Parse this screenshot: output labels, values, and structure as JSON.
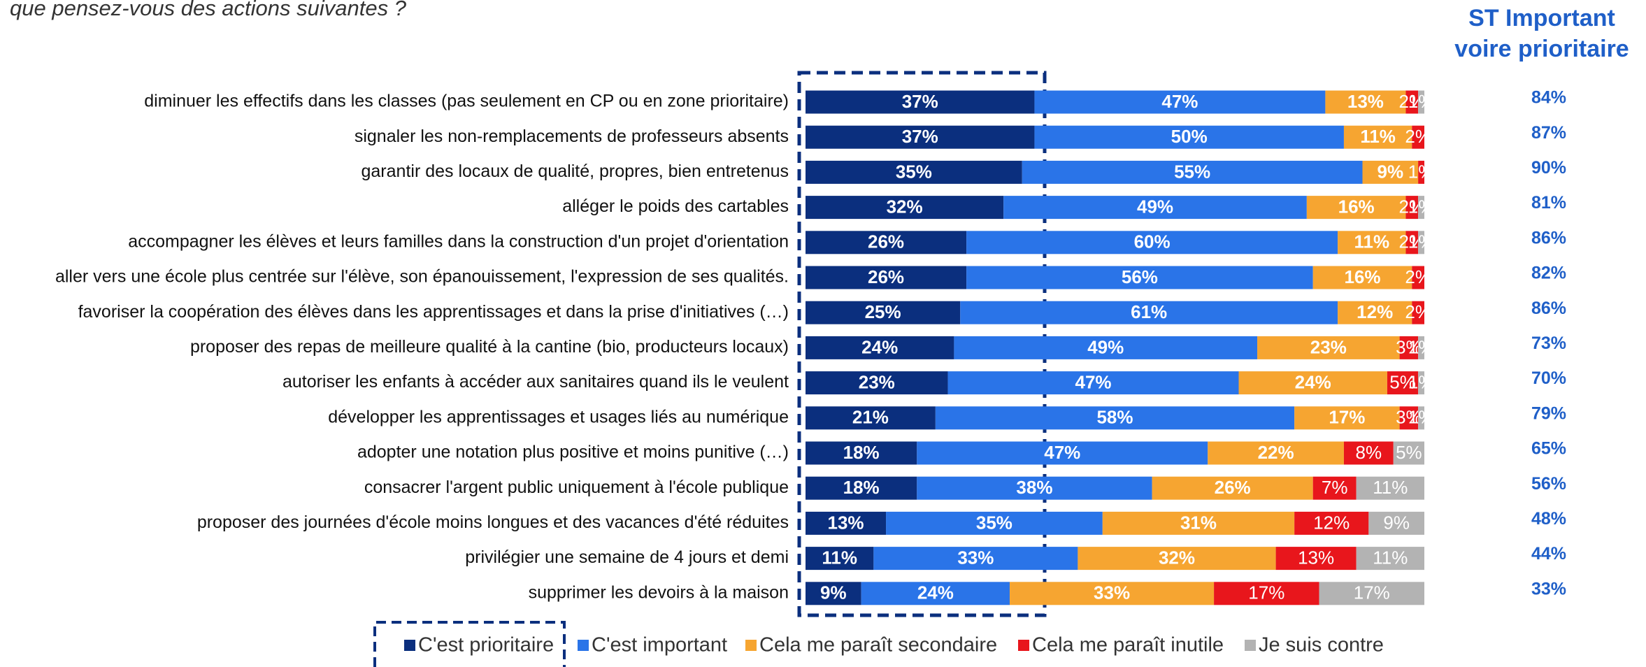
{
  "chart_data": {
    "type": "stacked_bar_horizontal",
    "subtitle": "que pensez-vous des actions suivantes ?",
    "st_title": [
      "ST Important",
      "voire prioritaire"
    ],
    "categories": [
      "diminuer les effectifs dans les classes (pas seulement en CP ou en zone prioritaire)",
      "signaler les non-remplacements de professeurs absents",
      "garantir des locaux de qualité, propres, bien entretenus",
      "alléger le poids des cartables",
      "accompagner les élèves et leurs familles dans la construction d'un projet d'orientation",
      "aller vers une école plus centrée sur l'élève, son épanouissement, l'expression de ses qualités.",
      "favoriser la coopération des élèves dans les apprentissages et dans la prise d'initiatives (…)",
      "proposer des repas de meilleure qualité à la cantine (bio, producteurs locaux)",
      "autoriser les enfants à accéder aux sanitaires quand ils le veulent",
      "développer les apprentissages et usages liés au numérique",
      "adopter une notation plus positive et moins punitive (…)",
      "consacrer l'argent public uniquement à l'école publique",
      "proposer des journées d'école moins longues et des vacances d'été réduites",
      "privilégier une semaine de 4 jours et demi",
      "supprimer les devoirs à la maison"
    ],
    "xlim": [
      0,
      100
    ],
    "series": [
      {
        "name": "C'est prioritaire",
        "color": "#0b2f7e",
        "values": [
          37,
          37,
          35,
          32,
          26,
          26,
          25,
          24,
          23,
          21,
          18,
          18,
          13,
          11,
          9
        ],
        "value_labels": [
          "37%",
          "37%",
          "35%",
          "32%",
          "26%",
          "26%",
          "25%",
          "24%",
          "23%",
          "21%",
          "18%",
          "18%",
          "13%",
          "11%",
          "9%"
        ]
      },
      {
        "name": "C'est important",
        "color": "#2a74e8",
        "values": [
          47,
          50,
          55,
          49,
          60,
          56,
          61,
          49,
          47,
          58,
          47,
          38,
          35,
          33,
          24
        ],
        "value_labels": [
          "47%",
          "50%",
          "55%",
          "49%",
          "60%",
          "56%",
          "61%",
          "49%",
          "47%",
          "58%",
          "47%",
          "38%",
          "35%",
          "33%",
          "24%"
        ]
      },
      {
        "name": "Cela me paraît secondaire",
        "color": "#f6a531",
        "values": [
          13,
          11,
          9,
          16,
          11,
          16,
          12,
          23,
          24,
          17,
          22,
          26,
          31,
          32,
          33
        ],
        "value_labels": [
          "13%",
          "11%",
          "9%",
          "16%",
          "11%",
          "16%",
          "12%",
          "23%",
          "24%",
          "17%",
          "22%",
          "26%",
          "31%",
          "32%",
          "33%"
        ]
      },
      {
        "name": "Cela me paraît inutile",
        "color": "#e8161c",
        "values": [
          2,
          2,
          1,
          2,
          2,
          2,
          2,
          3,
          5,
          3,
          8,
          7,
          12,
          13,
          17
        ],
        "value_labels": [
          "2%",
          "2%",
          "1%",
          "2%",
          "2%",
          "2%",
          "2%",
          "3%",
          "5%",
          "3%",
          "8%",
          "7%",
          "12%",
          "13%",
          "17%"
        ]
      },
      {
        "name": "Je suis contre",
        "color": "#b3b3b3",
        "values": [
          1,
          null,
          null,
          1,
          1,
          null,
          null,
          1,
          1,
          1,
          5,
          11,
          9,
          11,
          17
        ],
        "value_labels": [
          "1%",
          null,
          null,
          "1%",
          "1%",
          null,
          null,
          "1%",
          "1%",
          "1%",
          "5%",
          "11%",
          "9%",
          "11%",
          "17%"
        ]
      }
    ],
    "st_values": [
      84,
      87,
      90,
      81,
      86,
      82,
      86,
      73,
      70,
      79,
      65,
      56,
      48,
      44,
      33
    ],
    "st_labels": [
      "84%",
      "87%",
      "90%",
      "81%",
      "86%",
      "82%",
      "86%",
      "73%",
      "70%",
      "79%",
      "65%",
      "56%",
      "48%",
      "44%",
      "33%"
    ]
  }
}
